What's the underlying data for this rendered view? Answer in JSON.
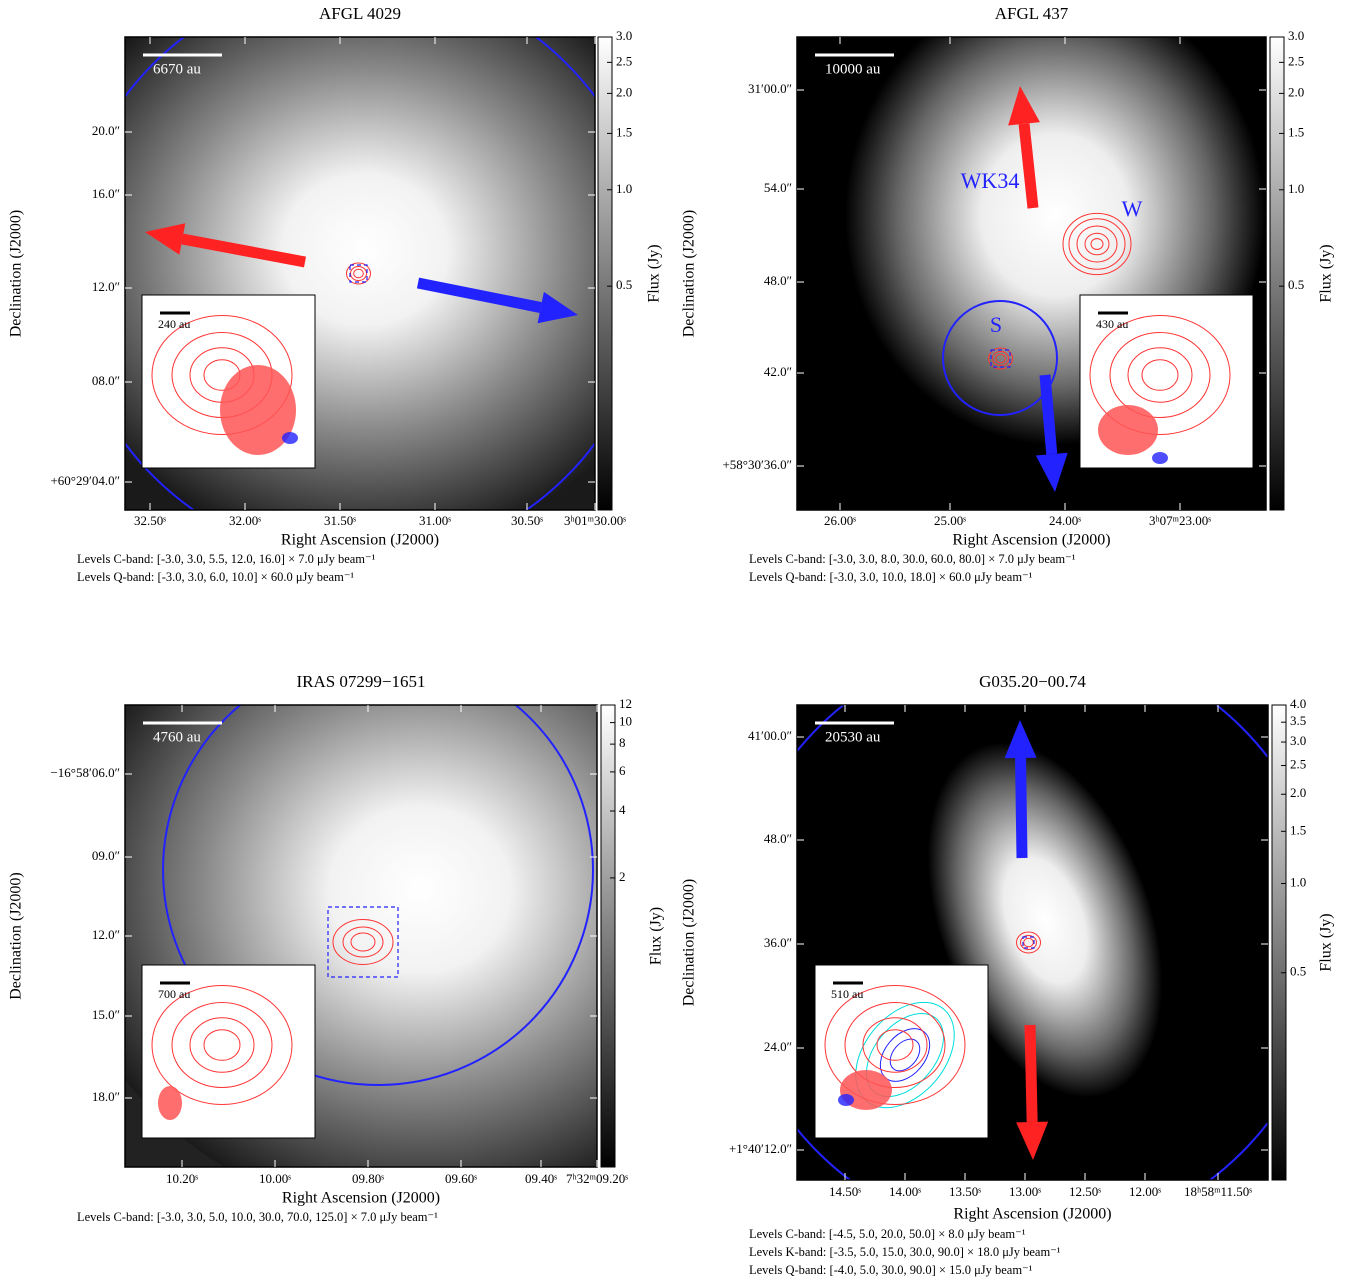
{
  "chart_data": [
    {
      "type": "image",
      "title": "AFGL 4029",
      "xlabel": "Right Ascension (J2000)",
      "ylabel": "Declination (J2000)",
      "xticklabels": [
        "32.50ˢ",
        "32.00ˢ",
        "31.50ˢ",
        "31.00ˢ",
        "30.50ˢ",
        "3ʰ01ᵐ30.00ˢ"
      ],
      "yticklabels": [
        "20.0″",
        "16.0″",
        "12.0″",
        "08.0″",
        "+60°29′04.0″"
      ],
      "colorbar": {
        "label": "Flux (Jy)",
        "scale": "log",
        "clim": [
          0.1,
          3.0
        ],
        "ticks": [
          {
            "value": 3,
            "label": "3.0"
          },
          {
            "value": 2.5,
            "label": "2.5"
          },
          {
            "value": 2,
            "label": "2.0"
          },
          {
            "value": 1.5,
            "label": "1.5"
          },
          {
            "value": 1,
            "label": "1.0"
          },
          {
            "value": 0.5,
            "label": "0.5"
          }
        ]
      },
      "scalebar": "6670 au",
      "inset_scalebar": "240 au",
      "annotations": [],
      "notes": [
        "Levels C-band: [-3.0, 3.0, 5.5, 12.0, 16.0] × 7.0 μJy beam⁻¹",
        "Levels Q-band: [-3.0, 3.0, 6.0, 10.0] × 60.0 μJy beam⁻¹"
      ]
    },
    {
      "type": "image",
      "title": "AFGL 437",
      "xlabel": "Right Ascension (J2000)",
      "ylabel": "Declination (J2000)",
      "xticklabels": [
        "26.00ˢ",
        "25.00ˢ",
        "24.00ˢ",
        "3ʰ07ᵐ23.00ˢ"
      ],
      "yticklabels": [
        "31′00.0″",
        "54.0″",
        "48.0″",
        "42.0″",
        "+58°30′36.0″"
      ],
      "colorbar": {
        "label": "Flux (Jy)",
        "scale": "log",
        "clim": [
          0.1,
          3.0
        ],
        "ticks": [
          {
            "value": 3,
            "label": "3.0"
          },
          {
            "value": 2.5,
            "label": "2.5"
          },
          {
            "value": 2,
            "label": "2.0"
          },
          {
            "value": 1.5,
            "label": "1.5"
          },
          {
            "value": 1,
            "label": "1.0"
          },
          {
            "value": 0.5,
            "label": "0.5"
          }
        ]
      },
      "scalebar": "10000 au",
      "inset_scalebar": "430 au",
      "annotations": [
        "WK34",
        "W",
        "S"
      ],
      "notes": [
        "Levels C-band: [-3.0, 3.0, 8.0, 30.0, 60.0, 80.0] × 7.0 μJy beam⁻¹",
        "Levels Q-band: [-3.0, 3.0, 10.0, 18.0] × 60.0 μJy beam⁻¹"
      ]
    },
    {
      "type": "image",
      "title": "IRAS 07299−1651",
      "xlabel": "Right Ascension (J2000)",
      "ylabel": "Declination (J2000)",
      "xticklabels": [
        "10.20ˢ",
        "10.00ˢ",
        "09.80ˢ",
        "09.60ˢ",
        "09.40ˢ",
        "7ʰ32ᵐ09.20ˢ"
      ],
      "yticklabels": [
        "−16°58′06.0″",
        "09.0″",
        "12.0″",
        "15.0″",
        "18.0″"
      ],
      "colorbar": {
        "label": "Flux (Jy)",
        "scale": "log",
        "clim": [
          0.1,
          12
        ],
        "ticks": [
          12,
          10,
          8,
          6,
          4,
          2
        ]
      },
      "scalebar": "4760 au",
      "inset_scalebar": "700 au",
      "annotations": [],
      "notes": [
        "Levels C-band: [-3.0, 3.0, 5.0, 10.0, 30.0, 70.0, 125.0] × 7.0 μJy beam⁻¹"
      ]
    },
    {
      "type": "image",
      "title": "G035.20−00.74",
      "xlabel": "Right Ascension (J2000)",
      "ylabel": "Declination (J2000)",
      "xticklabels": [
        "14.50ˢ",
        "14.00ˢ",
        "13.50ˢ",
        "13.00ˢ",
        "12.50ˢ",
        "12.00ˢ",
        "18ʰ58ᵐ11.50ˢ"
      ],
      "yticklabels": [
        "41′00.0″",
        "48.0″",
        "36.0″",
        "24.0″",
        "+1°40′12.0″"
      ],
      "colorbar": {
        "label": "Flux (Jy)",
        "scale": "log",
        "clim": [
          0.1,
          4.0
        ],
        "ticks": [
          {
            "value": 4,
            "label": "4.0"
          },
          {
            "value": 3.5,
            "label": "3.5"
          },
          {
            "value": 3,
            "label": "3.0"
          },
          {
            "value": 2.5,
            "label": "2.5"
          },
          {
            "value": 2,
            "label": "2.0"
          },
          {
            "value": 1.5,
            "label": "1.5"
          },
          {
            "value": 1,
            "label": "1.0"
          },
          {
            "value": 0.5,
            "label": "0.5"
          }
        ]
      },
      "scalebar": "20530 au",
      "inset_scalebar": "510 au",
      "annotations": [],
      "notes": [
        "Levels C-band: [-4.5, 5.0, 20.0, 50.0] × 8.0 μJy beam⁻¹",
        "Levels K-band: [-3.5, 5.0, 15.0, 30.0, 90.0] × 18.0 μJy beam⁻¹",
        "Levels Q-band: [-4.0, 5.0, 30.0, 90.0] × 15.0 μJy beam⁻¹"
      ]
    }
  ]
}
